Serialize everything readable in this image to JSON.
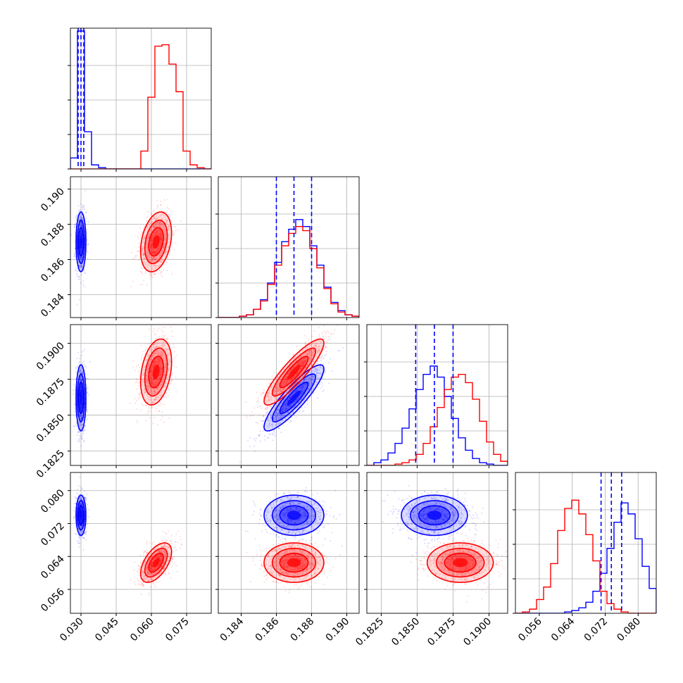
{
  "chart_data": {
    "type": "corner",
    "params": [
      {
        "ticks": [
          "0.030",
          "0.045",
          "0.060",
          "0.075"
        ],
        "tick_values": [
          0.03,
          0.045,
          0.06,
          0.075
        ],
        "range": [
          0.0255,
          0.0855
        ]
      },
      {
        "ticks": [
          "0.184",
          "0.186",
          "0.188",
          "0.190"
        ],
        "tick_values": [
          0.184,
          0.186,
          0.188,
          0.19
        ],
        "range": [
          0.1827,
          0.1907
        ]
      },
      {
        "ticks": [
          "0.1825",
          "0.1850",
          "0.1875",
          "0.1900"
        ],
        "tick_values": [
          0.1825,
          0.185,
          0.1875,
          0.19
        ],
        "range": [
          0.1815,
          0.1913
        ]
      },
      {
        "ticks": [
          "0.056",
          "0.064",
          "0.072",
          "0.080"
        ],
        "tick_values": [
          0.056,
          0.064,
          0.072,
          0.08
        ],
        "range": [
          0.0502,
          0.0844
        ]
      }
    ],
    "series": [
      {
        "color": "#0000ff",
        "mean": [
          0.03,
          0.187,
          0.1862,
          0.074
        ],
        "std": [
          0.00105,
          0.00085,
          0.00115,
          0.00245
        ],
        "corr": [
          [
            1,
            0,
            0,
            0
          ],
          [
            0,
            1,
            0.88,
            0
          ],
          [
            0,
            0,
            1,
            0
          ],
          [
            0,
            0,
            0,
            1
          ]
        ],
        "quantiles": [
          [
            0.0288,
            0.03,
            0.0312
          ],
          [
            0.186,
            0.187,
            0.188
          ],
          [
            0.1849,
            0.1862,
            0.1875
          ],
          [
            0.071,
            0.0735,
            0.076
          ]
        ],
        "hist": [
          [
            8,
            100,
            27,
            3,
            1,
            0,
            0,
            0,
            0,
            0,
            0,
            0,
            0,
            0,
            0,
            0,
            0,
            0,
            0,
            0
          ],
          [
            0,
            0,
            0,
            1,
            2,
            6,
            13,
            25,
            40,
            55,
            64,
            71,
            66,
            52,
            38,
            22,
            11,
            5,
            2,
            1
          ],
          [
            0,
            2,
            4,
            9,
            16,
            27,
            41,
            55,
            66,
            72,
            64,
            50,
            34,
            20,
            11,
            5,
            2,
            1,
            0,
            0
          ],
          [
            0,
            0,
            0,
            0,
            0,
            0,
            0,
            1,
            2,
            4,
            8,
            16,
            29,
            47,
            66,
            80,
            72,
            54,
            34,
            18
          ]
        ]
      },
      {
        "color": "#ff0000",
        "mean": [
          0.062,
          0.187,
          0.188,
          0.0625
        ],
        "std": [
          0.0033,
          0.00085,
          0.00115,
          0.0024
        ],
        "corr": [
          [
            1,
            0.3,
            0.3,
            0.55
          ],
          [
            0.3,
            1,
            0.88,
            0
          ],
          [
            0.3,
            0.88,
            1,
            0
          ],
          [
            0.55,
            0,
            0,
            1
          ]
        ],
        "hist": [
          [
            0,
            0,
            0,
            0,
            0,
            0,
            0,
            0,
            0,
            0,
            13,
            52,
            89,
            90,
            76,
            56,
            13,
            3,
            1,
            0
          ],
          [
            0,
            0,
            0,
            1,
            2,
            6,
            12,
            24,
            38,
            52,
            61,
            66,
            63,
            50,
            36,
            21,
            10,
            4,
            2,
            1
          ],
          [
            0,
            0,
            0,
            0,
            1,
            2,
            4,
            8,
            16,
            28,
            42,
            55,
            64,
            66,
            60,
            48,
            32,
            17,
            8,
            3
          ],
          [
            0,
            1,
            3,
            10,
            19,
            36,
            60,
            76,
            82,
            72,
            57,
            38,
            16,
            7,
            3,
            1,
            0,
            0,
            0,
            0
          ]
        ]
      }
    ]
  }
}
